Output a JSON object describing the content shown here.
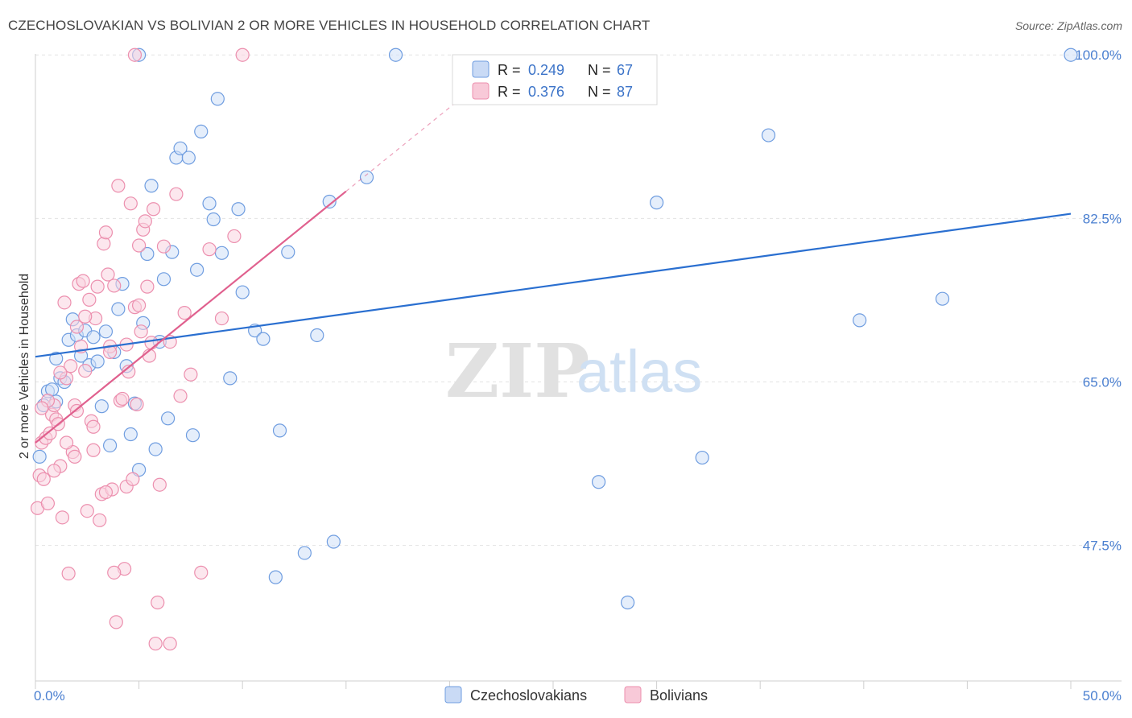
{
  "title": "CZECHOSLOVAKIAN VS BOLIVIAN 2 OR MORE VEHICLES IN HOUSEHOLD CORRELATION CHART",
  "source": "Source: ZipAtlas.com",
  "watermark": {
    "zip": "ZIP",
    "atlas": "atlas"
  },
  "chart_data": {
    "type": "scatter",
    "title": "CZECHOSLOVAKIAN VS BOLIVIAN 2 OR MORE VEHICLES IN HOUSEHOLD CORRELATION CHART",
    "xlabel": "",
    "ylabel": "2 or more Vehicles in Household",
    "xlim": [
      0,
      50
    ],
    "ylim": [
      33,
      102
    ],
    "x_tick_labels": [
      "0.0%",
      "50.0%"
    ],
    "y_ticks": [
      47.5,
      65.0,
      82.5,
      100.0
    ],
    "y_tick_labels": [
      "47.5%",
      "65.0%",
      "82.5%",
      "100.0%"
    ],
    "grid": true,
    "colors": {
      "czech": "#6f9de0",
      "bolivian": "#ec8fae",
      "czech_line": "#2a6fd0",
      "bolivian_line": "#e0608e"
    },
    "series": [
      {
        "name": "Czechoslovakians",
        "R": "0.249",
        "N": "67",
        "trend": {
          "x0": 0,
          "y0": 67.7,
          "x1": 50,
          "y1": 83.0
        },
        "points": [
          [
            0.2,
            57.0
          ],
          [
            0.4,
            62.5
          ],
          [
            0.6,
            64.0
          ],
          [
            0.8,
            64.2
          ],
          [
            1.0,
            62.9
          ],
          [
            1.0,
            67.5
          ],
          [
            1.2,
            65.4
          ],
          [
            1.4,
            65.0
          ],
          [
            1.6,
            69.5
          ],
          [
            1.8,
            71.7
          ],
          [
            2.0,
            70.0
          ],
          [
            2.2,
            67.8
          ],
          [
            2.4,
            70.5
          ],
          [
            2.6,
            66.8
          ],
          [
            2.8,
            69.8
          ],
          [
            3.0,
            67.2
          ],
          [
            3.2,
            62.4
          ],
          [
            3.4,
            70.4
          ],
          [
            3.6,
            58.2
          ],
          [
            3.8,
            68.2
          ],
          [
            4.0,
            72.8
          ],
          [
            4.2,
            75.5
          ],
          [
            4.4,
            66.7
          ],
          [
            4.6,
            59.4
          ],
          [
            4.8,
            62.7
          ],
          [
            5.0,
            55.6
          ],
          [
            5.2,
            71.3
          ],
          [
            5.4,
            78.7
          ],
          [
            5.6,
            86.0
          ],
          [
            5.8,
            57.8
          ],
          [
            6.0,
            69.3
          ],
          [
            6.2,
            76.0
          ],
          [
            6.4,
            61.1
          ],
          [
            6.6,
            78.9
          ],
          [
            6.8,
            89.0
          ],
          [
            7.0,
            90.0
          ],
          [
            7.4,
            89.0
          ],
          [
            7.6,
            59.3
          ],
          [
            7.8,
            77.0
          ],
          [
            8.0,
            91.8
          ],
          [
            8.4,
            84.1
          ],
          [
            8.6,
            82.4
          ],
          [
            8.8,
            95.3
          ],
          [
            9.0,
            78.8
          ],
          [
            9.4,
            65.4
          ],
          [
            9.8,
            83.5
          ],
          [
            10.0,
            74.6
          ],
          [
            10.6,
            70.5
          ],
          [
            11.0,
            69.6
          ],
          [
            11.8,
            59.8
          ],
          [
            12.2,
            78.9
          ],
          [
            13.0,
            46.7
          ],
          [
            13.6,
            70.0
          ],
          [
            14.4,
            47.9
          ],
          [
            14.2,
            84.3
          ],
          [
            11.6,
            44.1
          ],
          [
            16.0,
            86.9
          ],
          [
            17.4,
            100.0
          ],
          [
            27.2,
            54.3
          ],
          [
            28.6,
            41.4
          ],
          [
            30.0,
            84.2
          ],
          [
            32.2,
            56.9
          ],
          [
            35.4,
            91.4
          ],
          [
            39.8,
            71.6
          ],
          [
            43.8,
            73.9
          ],
          [
            50.0,
            100.0
          ],
          [
            5.0,
            100.0
          ]
        ]
      },
      {
        "name": "Bolivians",
        "R": "0.376",
        "N": "87",
        "trend": {
          "x0": 0,
          "y0": 58.5,
          "x1": 15,
          "y1": 85.4
        },
        "points": [
          [
            0.1,
            51.5
          ],
          [
            0.2,
            55.0
          ],
          [
            0.3,
            58.5
          ],
          [
            0.4,
            54.6
          ],
          [
            0.5,
            59.0
          ],
          [
            0.6,
            52.0
          ],
          [
            0.7,
            59.5
          ],
          [
            0.8,
            61.5
          ],
          [
            0.9,
            62.5
          ],
          [
            1.0,
            61.0
          ],
          [
            1.1,
            60.5
          ],
          [
            1.2,
            56.0
          ],
          [
            1.3,
            50.5
          ],
          [
            1.4,
            73.5
          ],
          [
            1.5,
            65.4
          ],
          [
            1.6,
            44.5
          ],
          [
            1.7,
            66.7
          ],
          [
            1.8,
            57.5
          ],
          [
            1.9,
            62.5
          ],
          [
            2.0,
            70.9
          ],
          [
            2.1,
            75.5
          ],
          [
            2.2,
            68.8
          ],
          [
            2.3,
            75.8
          ],
          [
            2.4,
            66.2
          ],
          [
            2.5,
            51.2
          ],
          [
            2.6,
            73.8
          ],
          [
            2.7,
            60.8
          ],
          [
            2.8,
            57.7
          ],
          [
            2.9,
            71.8
          ],
          [
            3.0,
            75.2
          ],
          [
            3.1,
            50.2
          ],
          [
            3.2,
            53.0
          ],
          [
            3.3,
            79.8
          ],
          [
            3.4,
            81.0
          ],
          [
            3.5,
            76.5
          ],
          [
            3.6,
            68.8
          ],
          [
            3.7,
            53.5
          ],
          [
            3.8,
            75.3
          ],
          [
            3.9,
            39.3
          ],
          [
            4.0,
            86.0
          ],
          [
            4.1,
            63.0
          ],
          [
            4.2,
            63.2
          ],
          [
            4.3,
            45.0
          ],
          [
            4.4,
            53.8
          ],
          [
            4.5,
            66.1
          ],
          [
            4.6,
            84.1
          ],
          [
            4.7,
            54.6
          ],
          [
            4.8,
            73.0
          ],
          [
            4.9,
            62.6
          ],
          [
            5.0,
            79.6
          ],
          [
            5.1,
            70.4
          ],
          [
            5.2,
            81.3
          ],
          [
            5.3,
            82.2
          ],
          [
            5.4,
            75.2
          ],
          [
            5.5,
            67.8
          ],
          [
            5.6,
            69.2
          ],
          [
            5.7,
            83.5
          ],
          [
            5.8,
            37.0
          ],
          [
            5.9,
            41.4
          ],
          [
            6.0,
            54.0
          ],
          [
            6.2,
            79.5
          ],
          [
            6.5,
            69.3
          ],
          [
            6.8,
            85.1
          ],
          [
            7.0,
            63.5
          ],
          [
            7.2,
            72.4
          ],
          [
            7.5,
            65.8
          ],
          [
            8.0,
            44.6
          ],
          [
            8.4,
            79.2
          ],
          [
            9.0,
            71.8
          ],
          [
            9.6,
            80.6
          ],
          [
            10.0,
            100.0
          ],
          [
            4.8,
            100.0
          ],
          [
            3.4,
            53.2
          ],
          [
            2.0,
            61.9
          ],
          [
            1.5,
            58.5
          ],
          [
            0.9,
            55.5
          ],
          [
            2.8,
            60.2
          ],
          [
            3.8,
            44.6
          ],
          [
            6.5,
            37.0
          ],
          [
            4.4,
            69.0
          ],
          [
            1.2,
            66.0
          ],
          [
            0.6,
            63.0
          ],
          [
            2.4,
            72.0
          ],
          [
            5.0,
            73.2
          ],
          [
            3.6,
            68.2
          ],
          [
            1.9,
            57.0
          ],
          [
            0.3,
            62.2
          ]
        ]
      }
    ],
    "legend": [
      "Czechoslovakians",
      "Bolivians"
    ]
  },
  "stats_box": {
    "rows": [
      {
        "r_label": "R =",
        "r_value": "0.249",
        "n_label": "N =",
        "n_value": "67"
      },
      {
        "r_label": "R =",
        "r_value": "0.376",
        "n_label": "N =",
        "n_value": "87"
      }
    ]
  }
}
